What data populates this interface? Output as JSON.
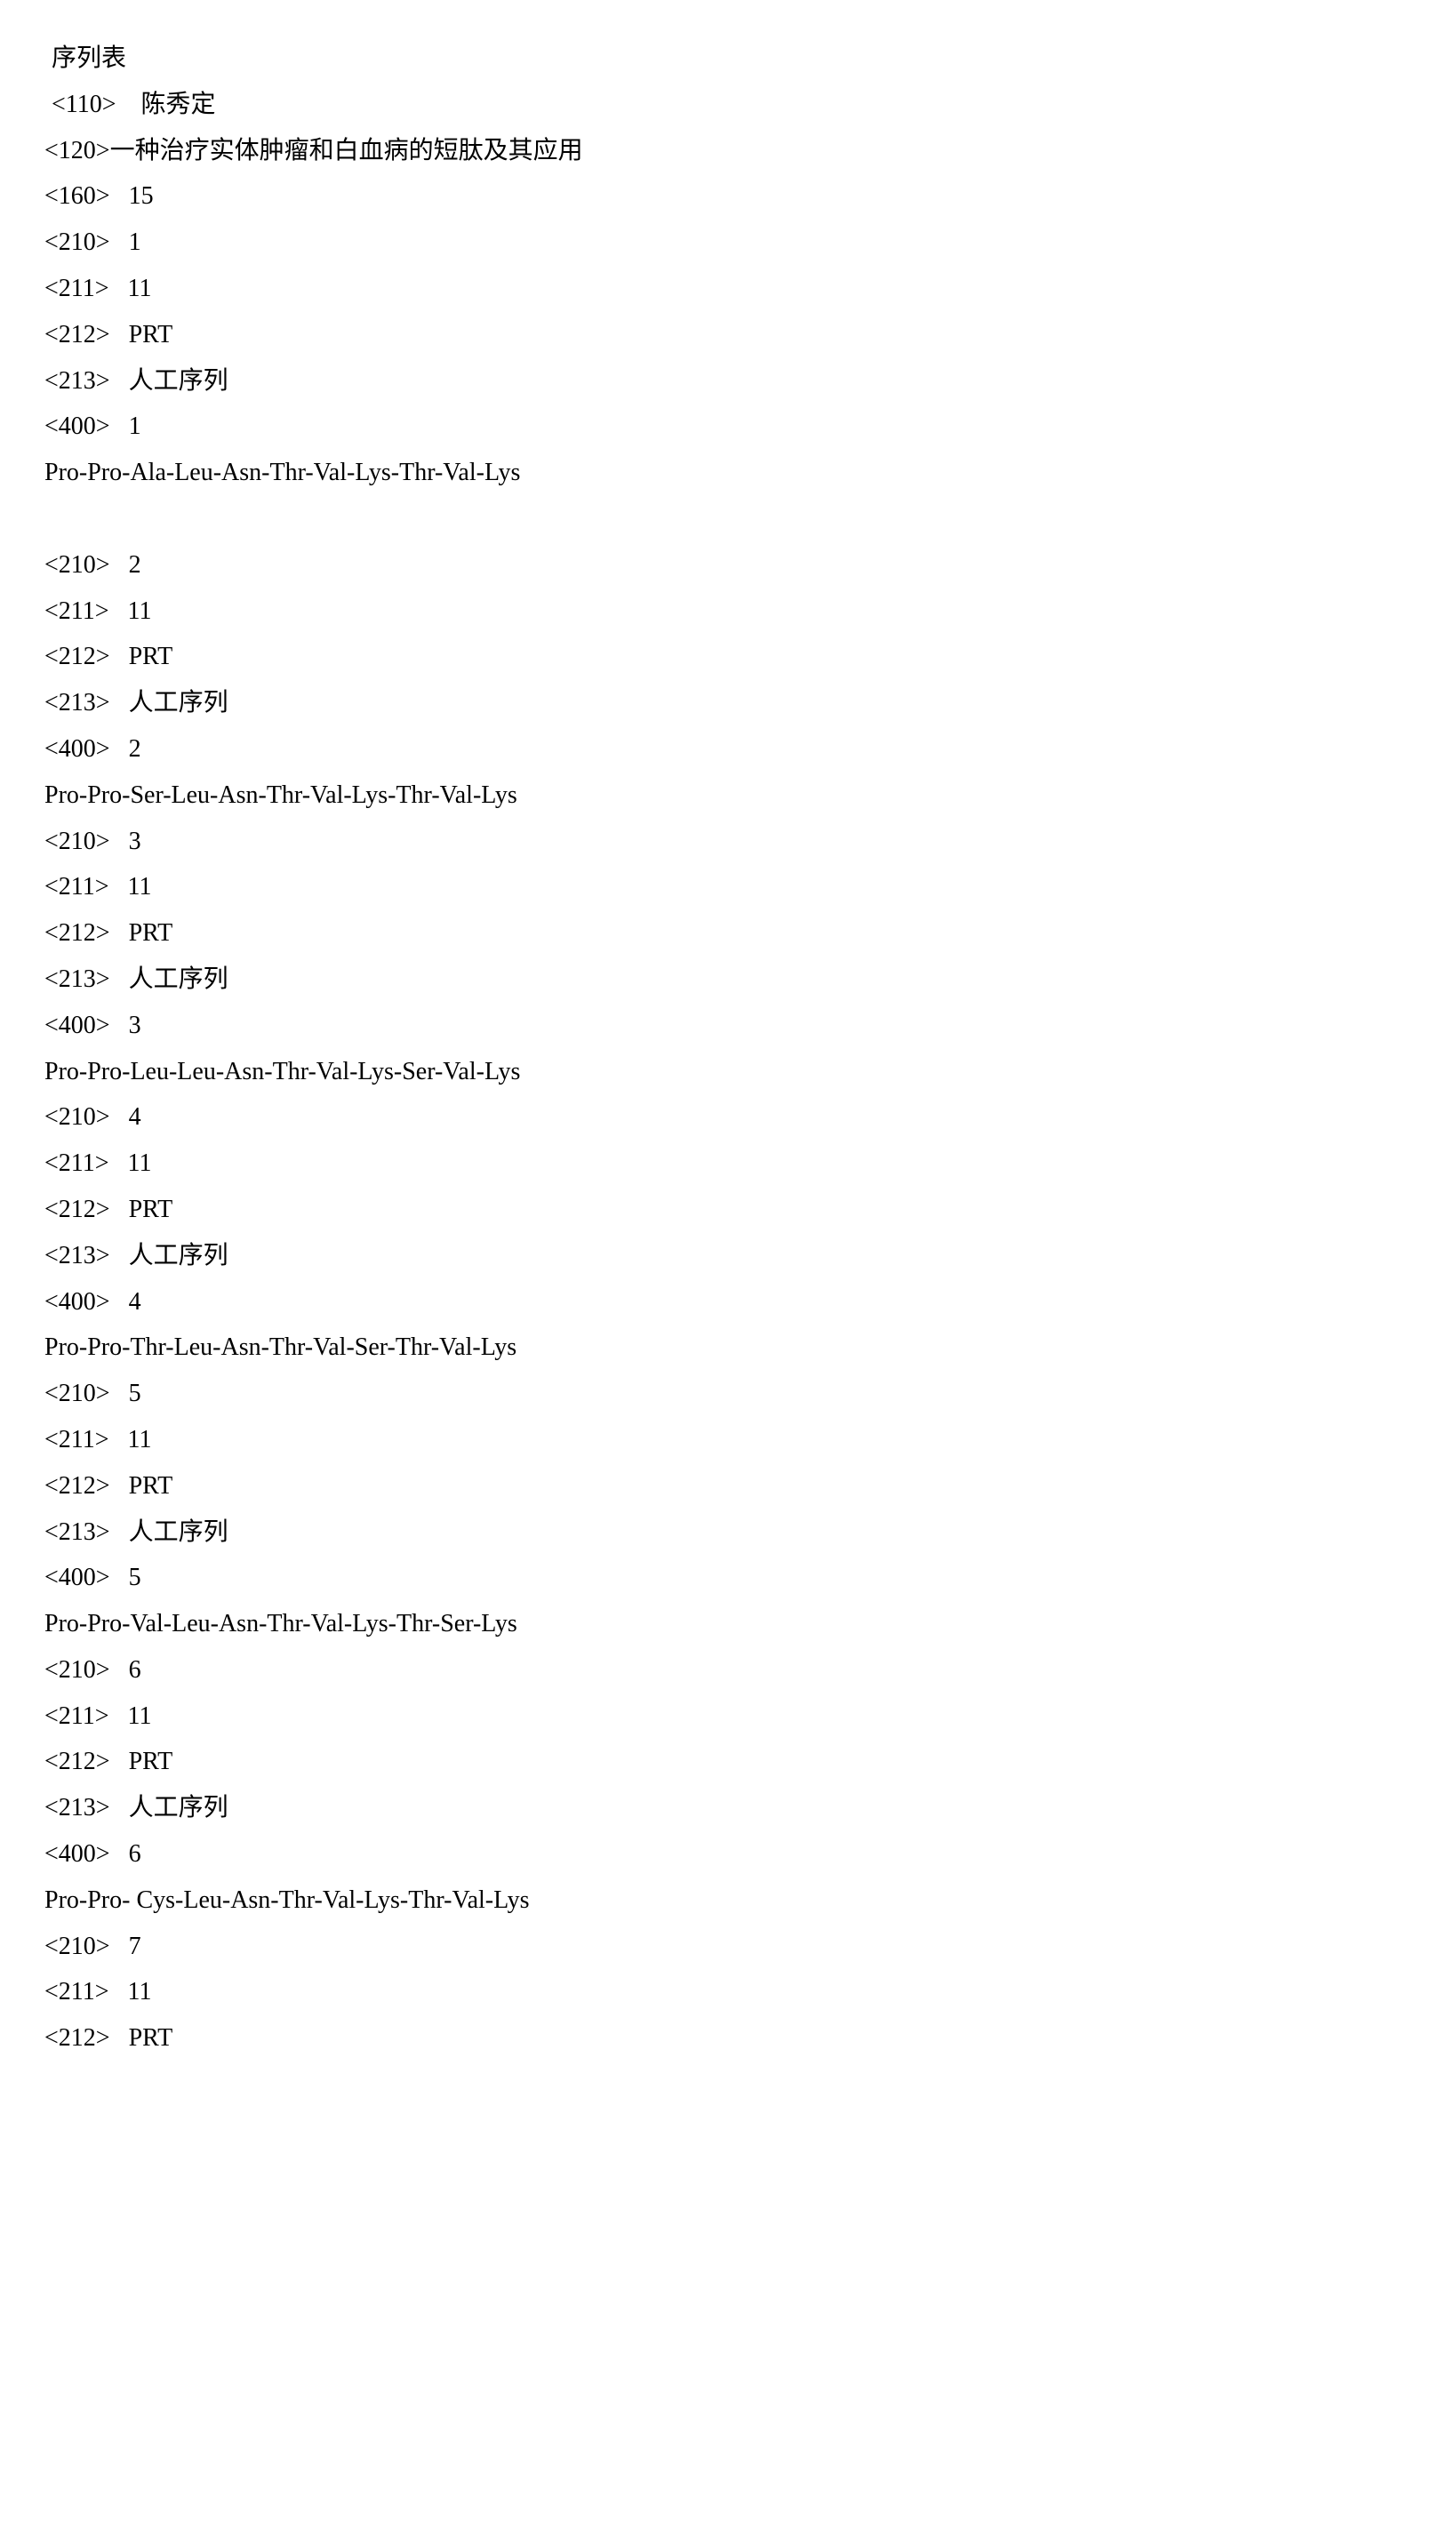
{
  "header": {
    "title": "序列表",
    "applicant_tag": "<110>",
    "applicant_value": "陈秀定",
    "invention_tag": "<120>",
    "invention_value": "一种治疗实体肿瘤和白血病的短肽及其应用",
    "count_tag": "<160>",
    "count_value": "15"
  },
  "sequences": [
    {
      "tag210": "<210>",
      "val210": "1",
      "tag211": "<211>",
      "val211": "11",
      "tag212": "<212>",
      "val212": "PRT",
      "tag213": "<213>",
      "val213": "人工序列",
      "tag400": "<400>",
      "val400": "1",
      "peptide": "Pro-Pro-Ala-Leu-Asn-Thr-Val-Lys-Thr-Val-Lys",
      "blank_after": true
    },
    {
      "tag210": "<210>",
      "val210": "2",
      "tag211": "<211>",
      "val211": "11",
      "tag212": "<212>",
      "val212": "PRT",
      "tag213": "<213>",
      "val213": "人工序列",
      "tag400": "<400>",
      "val400": "2",
      "peptide": "Pro-Pro-Ser-Leu-Asn-Thr-Val-Lys-Thr-Val-Lys",
      "blank_after": false
    },
    {
      "tag210": "<210>",
      "val210": "3",
      "tag211": "<211>",
      "val211": "11",
      "tag212": "<212>",
      "val212": "PRT",
      "tag213": "<213>",
      "val213": "人工序列",
      "tag400": "<400>",
      "val400": "3",
      "peptide": "Pro-Pro-Leu-Leu-Asn-Thr-Val-Lys-Ser-Val-Lys",
      "blank_after": false
    },
    {
      "tag210": "<210>",
      "val210": "4",
      "tag211": "<211>",
      "val211": "11",
      "tag212": "<212>",
      "val212": "PRT",
      "tag213": "<213>",
      "val213": "人工序列",
      "tag400": "<400>",
      "val400": "4",
      "peptide": "Pro-Pro-Thr-Leu-Asn-Thr-Val-Ser-Thr-Val-Lys",
      "blank_after": false
    },
    {
      "tag210": "<210>",
      "val210": "5",
      "tag211": "<211>",
      "val211": "11",
      "tag212": "<212>",
      "val212": "PRT",
      "tag213": "<213>",
      "val213": "人工序列",
      "tag400": "<400>",
      "val400": "5",
      "peptide": "Pro-Pro-Val-Leu-Asn-Thr-Val-Lys-Thr-Ser-Lys",
      "blank_after": false
    },
    {
      "tag210": "<210>",
      "val210": "6",
      "tag211": "<211>",
      "val211": "11",
      "tag212": "<212>",
      "val212": "PRT",
      "tag213": "<213>",
      "val213": "人工序列",
      "tag400": "<400>",
      "val400": "6",
      "peptide": "Pro-Pro- Cys-Leu-Asn-Thr-Val-Lys-Thr-Val-Lys",
      "blank_after": false
    }
  ],
  "trailing": {
    "tag210": "<210>",
    "val210": "7",
    "tag211": "<211>",
    "val211": "11",
    "tag212": "<212>",
    "val212": "PRT"
  }
}
